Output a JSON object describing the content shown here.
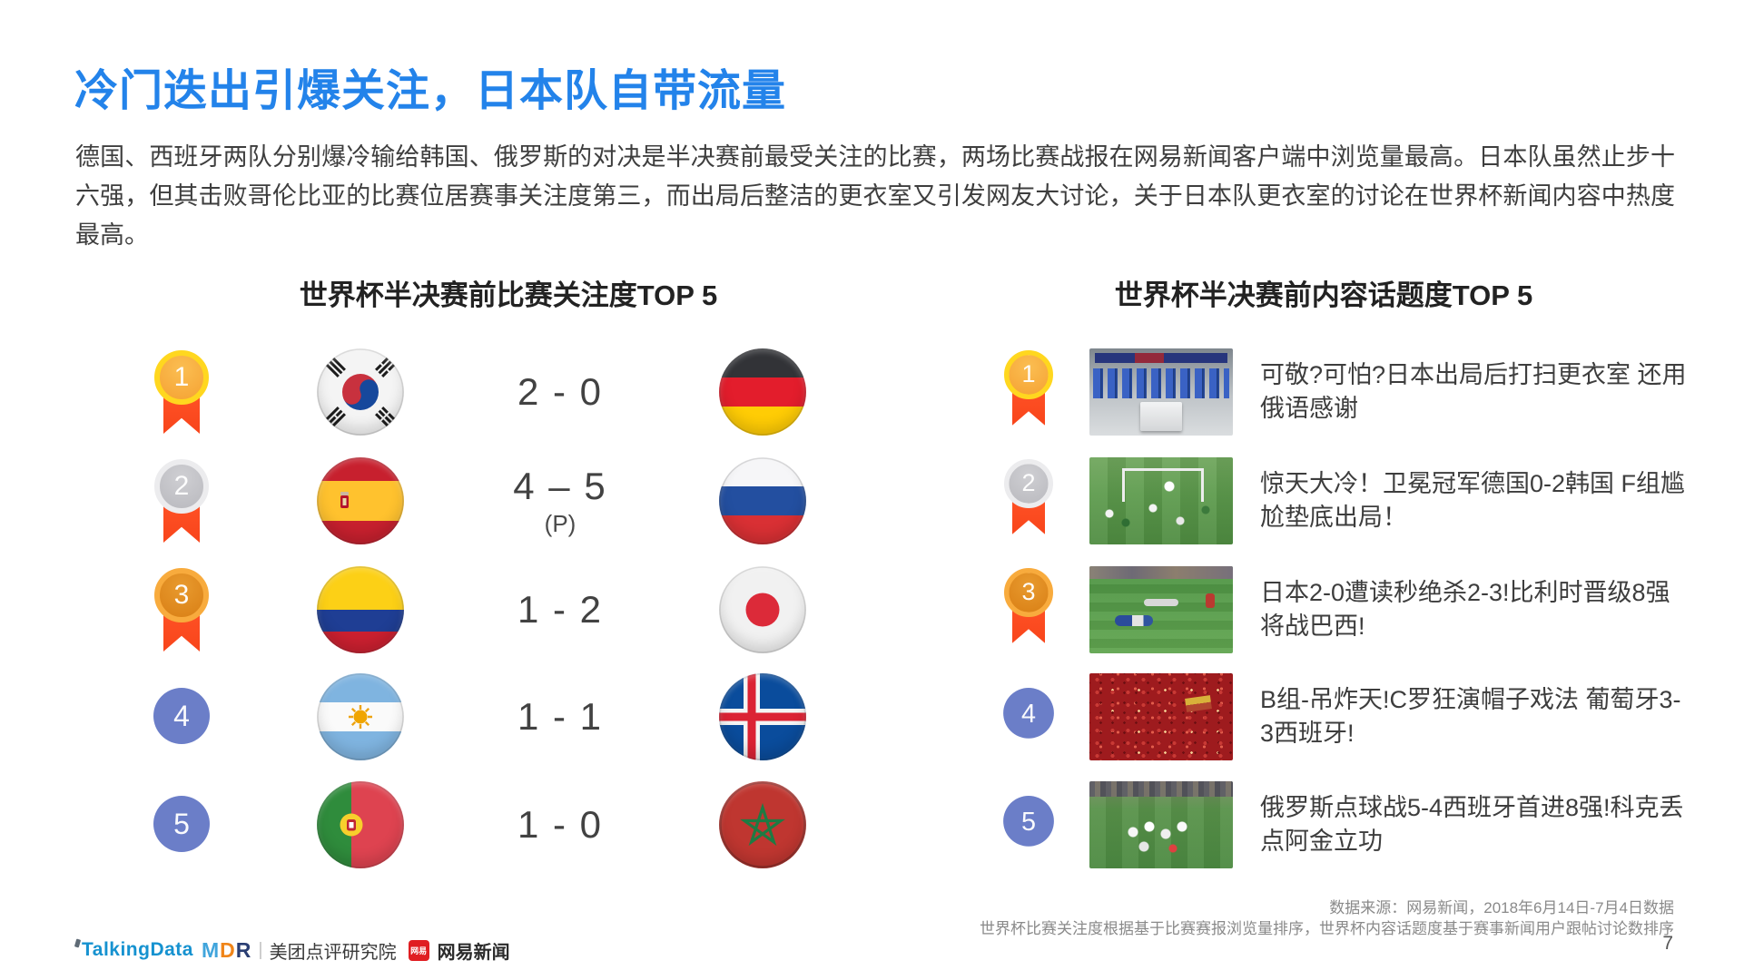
{
  "slide": {
    "title": "冷门迭出引爆关注，日本队自带流量",
    "paragraph": "德国、西班牙两队分别爆冷输给韩国、俄罗斯的对决是半决赛前最受关注的比赛，两场比赛战报在网易新闻客户端中浏览量最高。日本队虽然止步十六强，但其击败哥伦比亚的比赛位居赛事关注度第三，而出局后整洁的更衣室又引发网友大讨论，关于日本队更衣室的讨论在世界杯新闻内容中热度最高。",
    "page_number": "7"
  },
  "left_panel": {
    "title": "世界杯半决赛前比赛关注度TOP 5",
    "rows": [
      {
        "rank": "1",
        "medal": "gold",
        "home_flag": "south-korea",
        "score": "2 - 0",
        "note": "",
        "away_flag": "germany"
      },
      {
        "rank": "2",
        "medal": "silver",
        "home_flag": "spain",
        "score": "4 – 5",
        "note": "(P)",
        "away_flag": "russia"
      },
      {
        "rank": "3",
        "medal": "bronze",
        "home_flag": "colombia",
        "score": "1 - 2",
        "note": "",
        "away_flag": "japan"
      },
      {
        "rank": "4",
        "medal": "plain",
        "home_flag": "argentina",
        "score": "1 - 1",
        "note": "",
        "away_flag": "iceland"
      },
      {
        "rank": "5",
        "medal": "plain",
        "home_flag": "portugal",
        "score": "1 - 0",
        "note": "",
        "away_flag": "morocco"
      }
    ]
  },
  "right_panel": {
    "title": "世界杯半决赛前内容话题度TOP 5",
    "rows": [
      {
        "rank": "1",
        "medal": "gold",
        "thumb": "locker-room",
        "headline": "可敬?可怕?日本出局后打扫更衣室 还用俄语感谢"
      },
      {
        "rank": "2",
        "medal": "silver",
        "thumb": "goal-scene",
        "headline": "惊天大冷！卫冕冠军德国0-2韩国 F组尴尬垫底出局！"
      },
      {
        "rank": "3",
        "medal": "bronze",
        "thumb": "field-despair",
        "headline": "日本2-0遭读秒绝杀2-3!比利时晋级8强将战巴西!"
      },
      {
        "rank": "4",
        "medal": "plain",
        "thumb": "red-crowd",
        "headline": "B组-吊炸天!C罗狂演帽子戏法 葡萄牙3-3西班牙!"
      },
      {
        "rank": "5",
        "medal": "plain",
        "thumb": "team-celebration",
        "headline": "俄罗斯点球战5-4西班牙首进8强!科克丢点阿金立功"
      }
    ]
  },
  "footer": {
    "source_line1": "数据来源：网易新闻，2018年6月14日-7月4日数据",
    "source_line2": "世界杯比赛关注度根据基于比赛赛报浏览量排序，世界杯内容话题度基于赛事新闻用户跟帖讨论数排序",
    "logos": {
      "talkingdata": "TalkingData",
      "mdr": "MDR",
      "divider": "|",
      "meituan": "美团点评研究院",
      "netease_badge": "网易",
      "netease": "网易新闻"
    }
  },
  "colors": {
    "title_blue": "#2383EA",
    "body_text": "#3E3E3E",
    "ribbon_red": "#F8451B",
    "rank_plain_blue": "#6B7EC8",
    "medal_gold_ring": "#FFD71F",
    "medal_silver_ring": "#ECECEE",
    "medal_bronze_ring": "#F8AB3D",
    "talkingdata_blue": "#1692D0",
    "netease_red": "#E01E22"
  }
}
